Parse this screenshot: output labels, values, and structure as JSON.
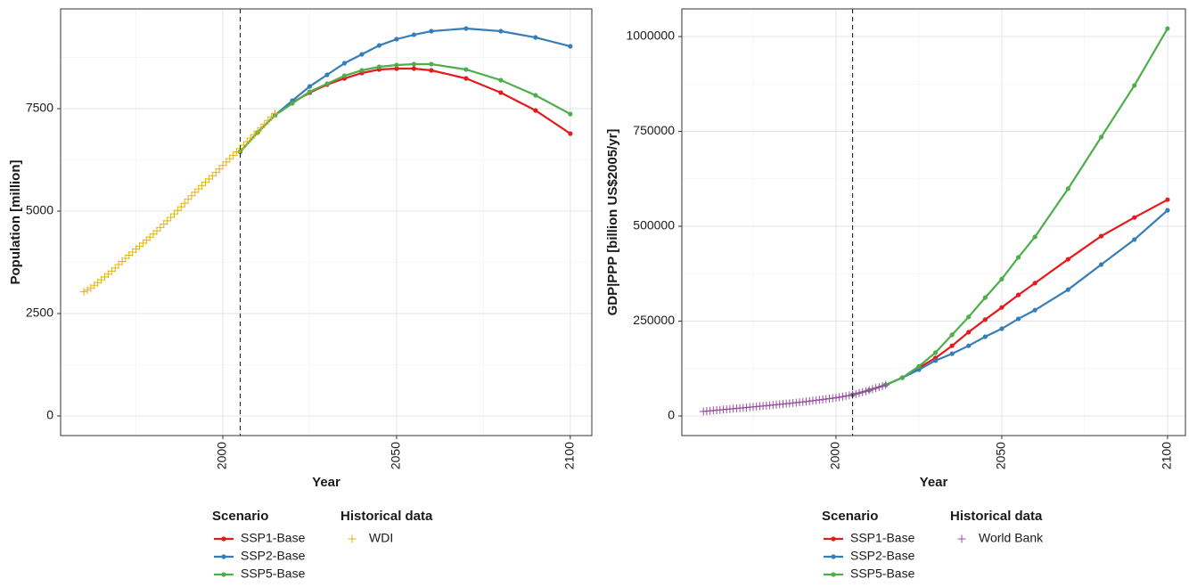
{
  "chart_data": [
    {
      "type": "line",
      "x_label": "Year",
      "y_label": "Population [million]",
      "xlim": [
        1953.3,
        2106.2
      ],
      "ylim": [
        -478,
        9935
      ],
      "xticks": [
        2000,
        2050,
        2100
      ],
      "yticks": [
        0,
        2500,
        5000,
        7500
      ],
      "grid": true,
      "vline": 2005,
      "series_groups": [
        {
          "title": "Scenario",
          "x": [
            2005,
            2010,
            2015,
            2020,
            2025,
            2030,
            2035,
            2040,
            2045,
            2050,
            2055,
            2060,
            2070,
            2080,
            2090,
            2100
          ],
          "series": [
            {
              "name": "SSP1-Base",
              "color": "#e41a1c",
              "marker": "point",
              "line": true,
              "values": [
                6450,
                6920,
                7340,
                7652,
                7891,
                8087,
                8239,
                8370,
                8457,
                8478,
                8478,
                8435,
                8239,
                7891,
                7457,
                6891
              ]
            },
            {
              "name": "SSP2-Base",
              "color": "#377eb8",
              "marker": "point",
              "line": true,
              "values": [
                6450,
                6920,
                7340,
                7696,
                8043,
                8326,
                8609,
                8826,
                9043,
                9196,
                9304,
                9391,
                9457,
                9391,
                9239,
                9022
              ]
            },
            {
              "name": "SSP5-Base",
              "color": "#4daf4a",
              "marker": "point",
              "line": true,
              "values": [
                6450,
                6920,
                7340,
                7630,
                7913,
                8109,
                8304,
                8435,
                8522,
                8565,
                8587,
                8587,
                8457,
                8196,
                7826,
                7370
              ]
            }
          ]
        },
        {
          "title": "Historical data",
          "x": [
            1960,
            1961,
            1962,
            1963,
            1964,
            1965,
            1966,
            1967,
            1968,
            1969,
            1970,
            1971,
            1972,
            1973,
            1974,
            1975,
            1976,
            1977,
            1978,
            1979,
            1980,
            1981,
            1982,
            1983,
            1984,
            1985,
            1986,
            1987,
            1988,
            1989,
            1990,
            1991,
            1992,
            1993,
            1994,
            1995,
            1996,
            1997,
            1998,
            1999,
            2000,
            2001,
            2002,
            2003,
            2004,
            2005,
            2006,
            2007,
            2008,
            2009,
            2010,
            2011,
            2012,
            2013,
            2014,
            2015
          ],
          "series": [
            {
              "name": "WDI",
              "color": "#e6b400",
              "marker": "plus",
              "line": false,
              "values": [
                3031,
                3072,
                3125,
                3190,
                3256,
                3323,
                3393,
                3463,
                3535,
                3610,
                3696,
                3772,
                3848,
                3924,
                3999,
                4073,
                4145,
                4218,
                4291,
                4365,
                4440,
                4519,
                4601,
                4683,
                4764,
                4847,
                4932,
                5018,
                5104,
                5191,
                5290,
                5376,
                5460,
                5542,
                5624,
                5705,
                5785,
                5864,
                5943,
                6029,
                6115,
                6198,
                6280,
                6362,
                6444,
                6527,
                6610,
                6694,
                6779,
                6865,
                6951,
                7038,
                7125,
                7212,
                7299,
                7385
              ]
            }
          ]
        }
      ]
    },
    {
      "type": "line",
      "x_label": "Year",
      "y_label": "GDP|PPP [billion US$2005/yr]",
      "xlim": [
        1953.5,
        2105.4
      ],
      "ylim": [
        -51600,
        1072770
      ],
      "xticks": [
        2000,
        2050,
        2100
      ],
      "yticks": [
        0,
        250000,
        500000,
        750000,
        1000000
      ],
      "grid": true,
      "vline": 2005,
      "series_groups": [
        {
          "title": "Scenario",
          "x": [
            2005,
            2010,
            2015,
            2020,
            2025,
            2030,
            2035,
            2040,
            2045,
            2050,
            2055,
            2060,
            2070,
            2080,
            2090,
            2100
          ],
          "series": [
            {
              "name": "SSP1-Base",
              "color": "#e41a1c",
              "marker": "point",
              "line": true,
              "values": [
                56000,
                68000,
                82000,
                101000,
                127000,
                153000,
                185000,
                221000,
                254000,
                286000,
                319000,
                350000,
                413000,
                474000,
                523000,
                570000
              ]
            },
            {
              "name": "SSP2-Base",
              "color": "#377eb8",
              "marker": "point",
              "line": true,
              "values": [
                56000,
                68000,
                82000,
                101000,
                122000,
                146000,
                164000,
                185000,
                209000,
                230000,
                256000,
                279000,
                333000,
                399000,
                465000,
                542000
              ]
            },
            {
              "name": "SSP5-Base",
              "color": "#4daf4a",
              "marker": "point",
              "line": true,
              "values": [
                56000,
                68000,
                82000,
                101000,
                131000,
                167000,
                214000,
                261000,
                312000,
                361000,
                418000,
                472000,
                599000,
                735000,
                871000,
                1021000
              ]
            }
          ]
        },
        {
          "title": "Historical data",
          "x": [
            1960,
            1961,
            1962,
            1963,
            1964,
            1965,
            1966,
            1967,
            1968,
            1969,
            1970,
            1971,
            1972,
            1973,
            1974,
            1975,
            1976,
            1977,
            1978,
            1979,
            1980,
            1981,
            1982,
            1983,
            1984,
            1985,
            1986,
            1987,
            1988,
            1989,
            1990,
            1991,
            1992,
            1993,
            1994,
            1995,
            1996,
            1997,
            1998,
            1999,
            2000,
            2001,
            2002,
            2003,
            2004,
            2005,
            2006,
            2007,
            2008,
            2009,
            2010,
            2011,
            2012,
            2013,
            2014,
            2015
          ],
          "series": [
            {
              "name": "World Bank",
              "color": "#984ea3",
              "marker": "plus",
              "line": false,
              "values": [
                12000,
                12800,
                13600,
                14400,
                15200,
                16000,
                16800,
                17600,
                18400,
                19200,
                20000,
                20800,
                21600,
                22400,
                23200,
                24000,
                24800,
                25600,
                26400,
                27200,
                28000,
                28900,
                29800,
                30700,
                31600,
                32500,
                33400,
                34300,
                35200,
                36100,
                37000,
                38100,
                39200,
                40300,
                41400,
                42500,
                43600,
                44700,
                45800,
                46900,
                48000,
                49500,
                51000,
                52600,
                54200,
                56000,
                58200,
                60500,
                62900,
                65300,
                68000,
                70700,
                73400,
                76100,
                78800,
                82000
              ]
            }
          ]
        }
      ]
    }
  ]
}
